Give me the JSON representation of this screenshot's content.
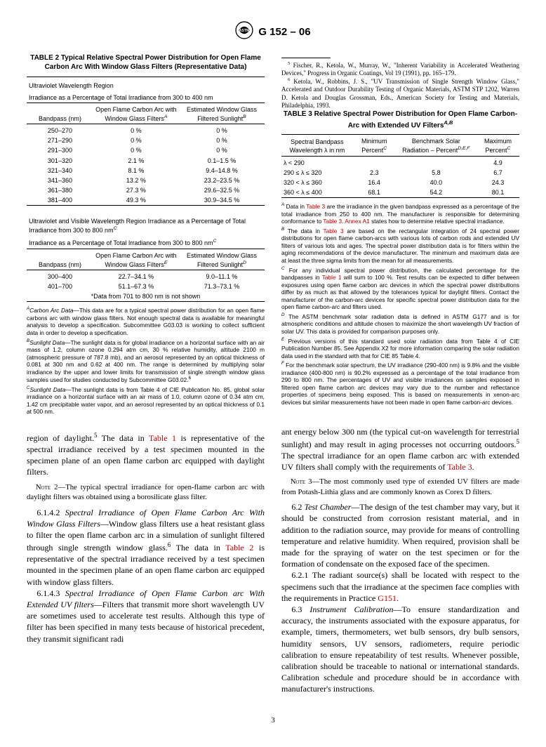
{
  "doc_id": "G 152 – 06",
  "table2": {
    "title": "TABLE 2 Typical Relative Spectral Power Distribution for Open Flame Carbon Arc With Window Glass Filters (Representative Data)",
    "uv_label": "Ultraviolet Wavelength Region",
    "uv_sub": "Irradiance as a Percentage of Total Irradiance from 300 to 400 nm",
    "col_bp": "Bandpass (nm)",
    "col_of": "Open Flame Carbon Arc with Window Glass Filters",
    "col_of_sup": "A",
    "col_ws": "Estimated Window Glass Filtered Sunlight",
    "col_ws_sup": "B",
    "uv_rows": [
      [
        "250–270",
        "0 %",
        "0 %"
      ],
      [
        "271–290",
        "0 %",
        "0 %"
      ],
      [
        "291–300",
        "0 %",
        "0 %"
      ],
      [
        "301–320",
        "2.1 %",
        "0.1–1.5 %"
      ],
      [
        "321–340",
        "8.1 %",
        "9.4–14.8 %"
      ],
      [
        "341–360",
        "13.2 %",
        "23.2–23.5 %"
      ],
      [
        "361–380",
        "27.3 %",
        "29.6–32.5 %"
      ],
      [
        "381–400",
        "49.3 %",
        "30.9–34.5 %"
      ]
    ],
    "vis_label": "Ultraviolet and Visible Wavelength Region Irradiance as a Percentage of Total Irradiance from 300 to 800 nm",
    "vis_label_sup": "C",
    "vis_sub": "Irradiance as a Percentage of Total Irradiance from 300 to 800 nm",
    "vis_sub_sup": "C",
    "vis_col_of": "Open Flame Carbon Arc with Window Glass Filters",
    "vis_col_of_sup": "E",
    "vis_col_ws": "Estimated Window Glass Filtered Sunlight",
    "vis_col_ws_sup": "D",
    "vis_rows": [
      [
        "300–400",
        "22.7–34.1 %",
        "9.0–11.1 %"
      ],
      [
        "401–700",
        "51.1–67.3 %",
        "71.3–73.1 %"
      ]
    ],
    "vis_note": "*Data from 701 to 800 nm is not shown",
    "fn_a_label": "A",
    "fn_a_head": "Carbon Arc Data",
    "fn_a": "—This data are for a typical spectral power distribution for an open flame carbons arc with window glass filters. Not enough spectral data is available for meaningful analysis to develop a specification. Subcommittee G03.03 is working to collect sufficient data in order to develop a specification.",
    "fn_b_label": "B",
    "fn_b_head": "Sunlight Data",
    "fn_b": "—The sunlight data is for global irradiance on a horizontal surface with an air mass of 1.2, column ozone 0.294 atm cm, 30 % relative humidity, altitude 2100 m (atmospheric pressure of 787.8 mb), and an aerosol represented by an optical thickness of 0.081 at 300 nm and 0.62 at 400 nm. The range is determined by multiplying solar irradiance by the upper and lower limits for transmission of single strength window glass samples used for studies conducted by Subcommittee G03.02.",
    "fn_b_sup": "6",
    "fn_c_label": "C",
    "fn_c_head": "Sunlight Data",
    "fn_c": "—The sunlight data is from Table 4 of CIE Publication No. 85, global solar irradiance on a horizontal surface with an air mass of 1.0, column ozone of 0.34 atm cm, 1.42 cm precipitable water vapor, and an aerosol represented by an optical thickness of 0.1 at 500 nm."
  },
  "para1_pre": "region of daylight.",
  "para1_sup": "5",
  "para1_mid": " The data in ",
  "para1_link": "Table 1",
  "para1_post": " is representative of the spectral irradiance received by a test specimen mounted in the specimen plane of an open flame carbon arc equipped with daylight filters.",
  "note2_sc": "Note 2",
  "note2": "—The typical spectral irradiance for open-flame carbon arc with daylight filters was obtained using a borosilicate glass filter.",
  "p6142_num": "6.1.4.2 ",
  "p6142_title": "Spectral Irradiance of Open Flame Carbon Arc With Window Glass Filters",
  "p6142_a": "—Window glass filters use a heat resistant glass to filter the open flame carbon arc in a simulation of sunlight filtered through single strength window glass.",
  "p6142_sup": "6",
  "p6142_b": " The data in ",
  "p6142_link": "Table 2",
  "p6142_c": " is representative of the spectral irradiance received by a test specimen mounted in the specimen plane of an open flame carbon arc equipped with window glass filters.",
  "p6143_num": "6.1.4.3 ",
  "p6143_title": "Spectral Irradiance of Open Flame Carbon arc With Extended UV filters",
  "p6143_body": "—Filters that transmit more short wavelength UV are sometimes used to accelerate test results. Although this type of filter has been specified in many tests because of historical precedent, they transmit significant radi",
  "fn5_sup": "5",
  "fn5": " Fischer, R., Ketola, W., Murray, W., \"Inherent Variability in Accelerated Weathering Devices,\" Progress in Organic Coatings, Vol 19 (1991), pp. 165–179.",
  "fn6_sup": "6",
  "fn6": " Ketola, W., Robbins, J. S., \"UV Transmission of Single Strength Window Glass,\" Accelerated and Outdoor Durability Testing of Organic Materials, ASTM STP 1202, Warren D. Ketola and Douglas Grossman, Eds., American Society for Testing and Materials, Philadelphia, 1993.",
  "table3": {
    "title": "TABLE 3 Relative Spectral Power Distribution for Open Flame Carbon-Arc with Extended UV Filters",
    "title_sup": "A,B",
    "h1": "Spectral Bandpass Wavelength λ in nm",
    "h2": "Minimum Percent",
    "h2s": "C",
    "h3": "Benchmark Solar Radiation – Percent",
    "h3s": "D,E,F",
    "h4": "Maximum Percent",
    "h4s": "C",
    "rows": [
      [
        "λ < 290",
        "",
        "",
        "4.9"
      ],
      [
        "290 ≤ λ ≤ 320",
        "2.3",
        "5.8",
        "6.7"
      ],
      [
        "320 < λ ≤ 360",
        "16.4",
        "40.0",
        "24.3"
      ],
      [
        "360 < λ ≤ 400",
        "68.1",
        "54.2",
        "80.1"
      ]
    ],
    "fna_s": "A",
    "fna": " Data in Table 3 are the irradiance in the given bandpass expressed as a percentage of the total irradiance from 250 to 400 nm. The manufacturer is responsible for determining conformance to Table 3. Annex A1 states how to determine relative spectral irradiance.",
    "fna_l1": "Table 3",
    "fna_l2": "Table 3",
    "fna_l3": "Annex A1",
    "fnb_s": "B",
    "fnb": " The data in Table 3 are based on the rectangular integration of 24 spectral power distributions for open flame carbon-arcs with various lots of carbon rods and extended UV filters of various lots and ages. The spectral power distribution data is for filters within the aging recommendations of the device manufacturer. The minimum and maximum data are at least the three sigma limits from the mean for all measurements.",
    "fnb_l": "Table 3",
    "fnc_s": "C",
    "fnc": " For any individual spectral power distribution, the calculated percentage for the bandpasses in Table 1 will sum to 100 %. Test results can be expected to differ between exposures using open flame carbon arc devices in which the spectral power distributions differ by as much as that allowed by the tolerances typical for daylight filters. Contact the manufacturer of the carbon-arc devices for specific spectral power distribution data for the open flame carbon-arc and filters used.",
    "fnc_l": "Table 1",
    "fnd_s": "D",
    "fnd": " The ASTM benchmark solar radiation data is defined in ASTM G177 and is for atmospheric conditions and altitude chosen to maximize the short wavelength UV fraction of solar UV. This data is provided for comparison purposes only.",
    "fne_s": "E",
    "fne": " Previous versions of this standard used solar radiation data from Table 4 of CIE Publication Number 85. See Appendix X2 for more information comparing the solar radiation data used in the standard with that for CIE 85 Table 4.",
    "fnf_s": "F",
    "fnf": " For the benchmark solar spectrum, the UV irradiance (290-400 nm) is 9.8% and the visible irradiance (400-800 nm) is 90.2% expressed as a percentage of the total irradiance from 290 to 800 nm. The percentages of UV and visible irradiances on samples exposed in filtered open flame carbon arc devices may vary due to the number and reflectance properties of specimens being exposed. This is based on measurements in xenon-arc devices but similar measurements have not been made in open flame carbon-arc devices."
  },
  "colR_p1a": "ant energy below 300 nm (the typical cut-on wavelength for terrestrial sunlight) and may result in aging processes not occurring outdoors.",
  "colR_p1sup": "5",
  "colR_p1b": " The spectral irradiance for an open flame carbon arc with extended UV filters shall comply with the requirements of ",
  "colR_p1link": "Table 3",
  "colR_p1c": ".",
  "note3_sc": "Note 3",
  "note3": "—The most commonly used type of extended UV filters are made from Potash-Lithia glass and are commonly known as Corex D filters.",
  "p62_num": "6.2 ",
  "p62_title": "Test Chamber",
  "p62": "—The design of the test chamber may vary, but it should be constructed from corrosion resistant material, and in addition to the radiation source, may provide for means of controlling temperature and relative humidity. When required, provision shall be made for the spraying of water on the test specimen or for the formation of condensate on the exposed face of the specimen.",
  "p621_num": "6.2.1 ",
  "p621a": "The radiant source(s) shall be located with respect to the specimens such that the irradiance at the specimen face complies with the requirements in Practice ",
  "p621_link": "G151",
  "p621b": ".",
  "p63_num": "6.3 ",
  "p63_title": "Instrument Calibration",
  "p63": "—To ensure standardization and accuracy, the instruments associated with the exposure apparatus, for example, timers, thermometers, wet bulb sensors, dry bulb sensors, humidity sensors, UV sensors, radiometers, require periodic calibration to ensure repeatability of test results. Whenever possible, calibration should be traceable to national or international standards. Calibration schedule and procedure should be in accordance with manufacturer's instructions.",
  "pgnum": "3"
}
